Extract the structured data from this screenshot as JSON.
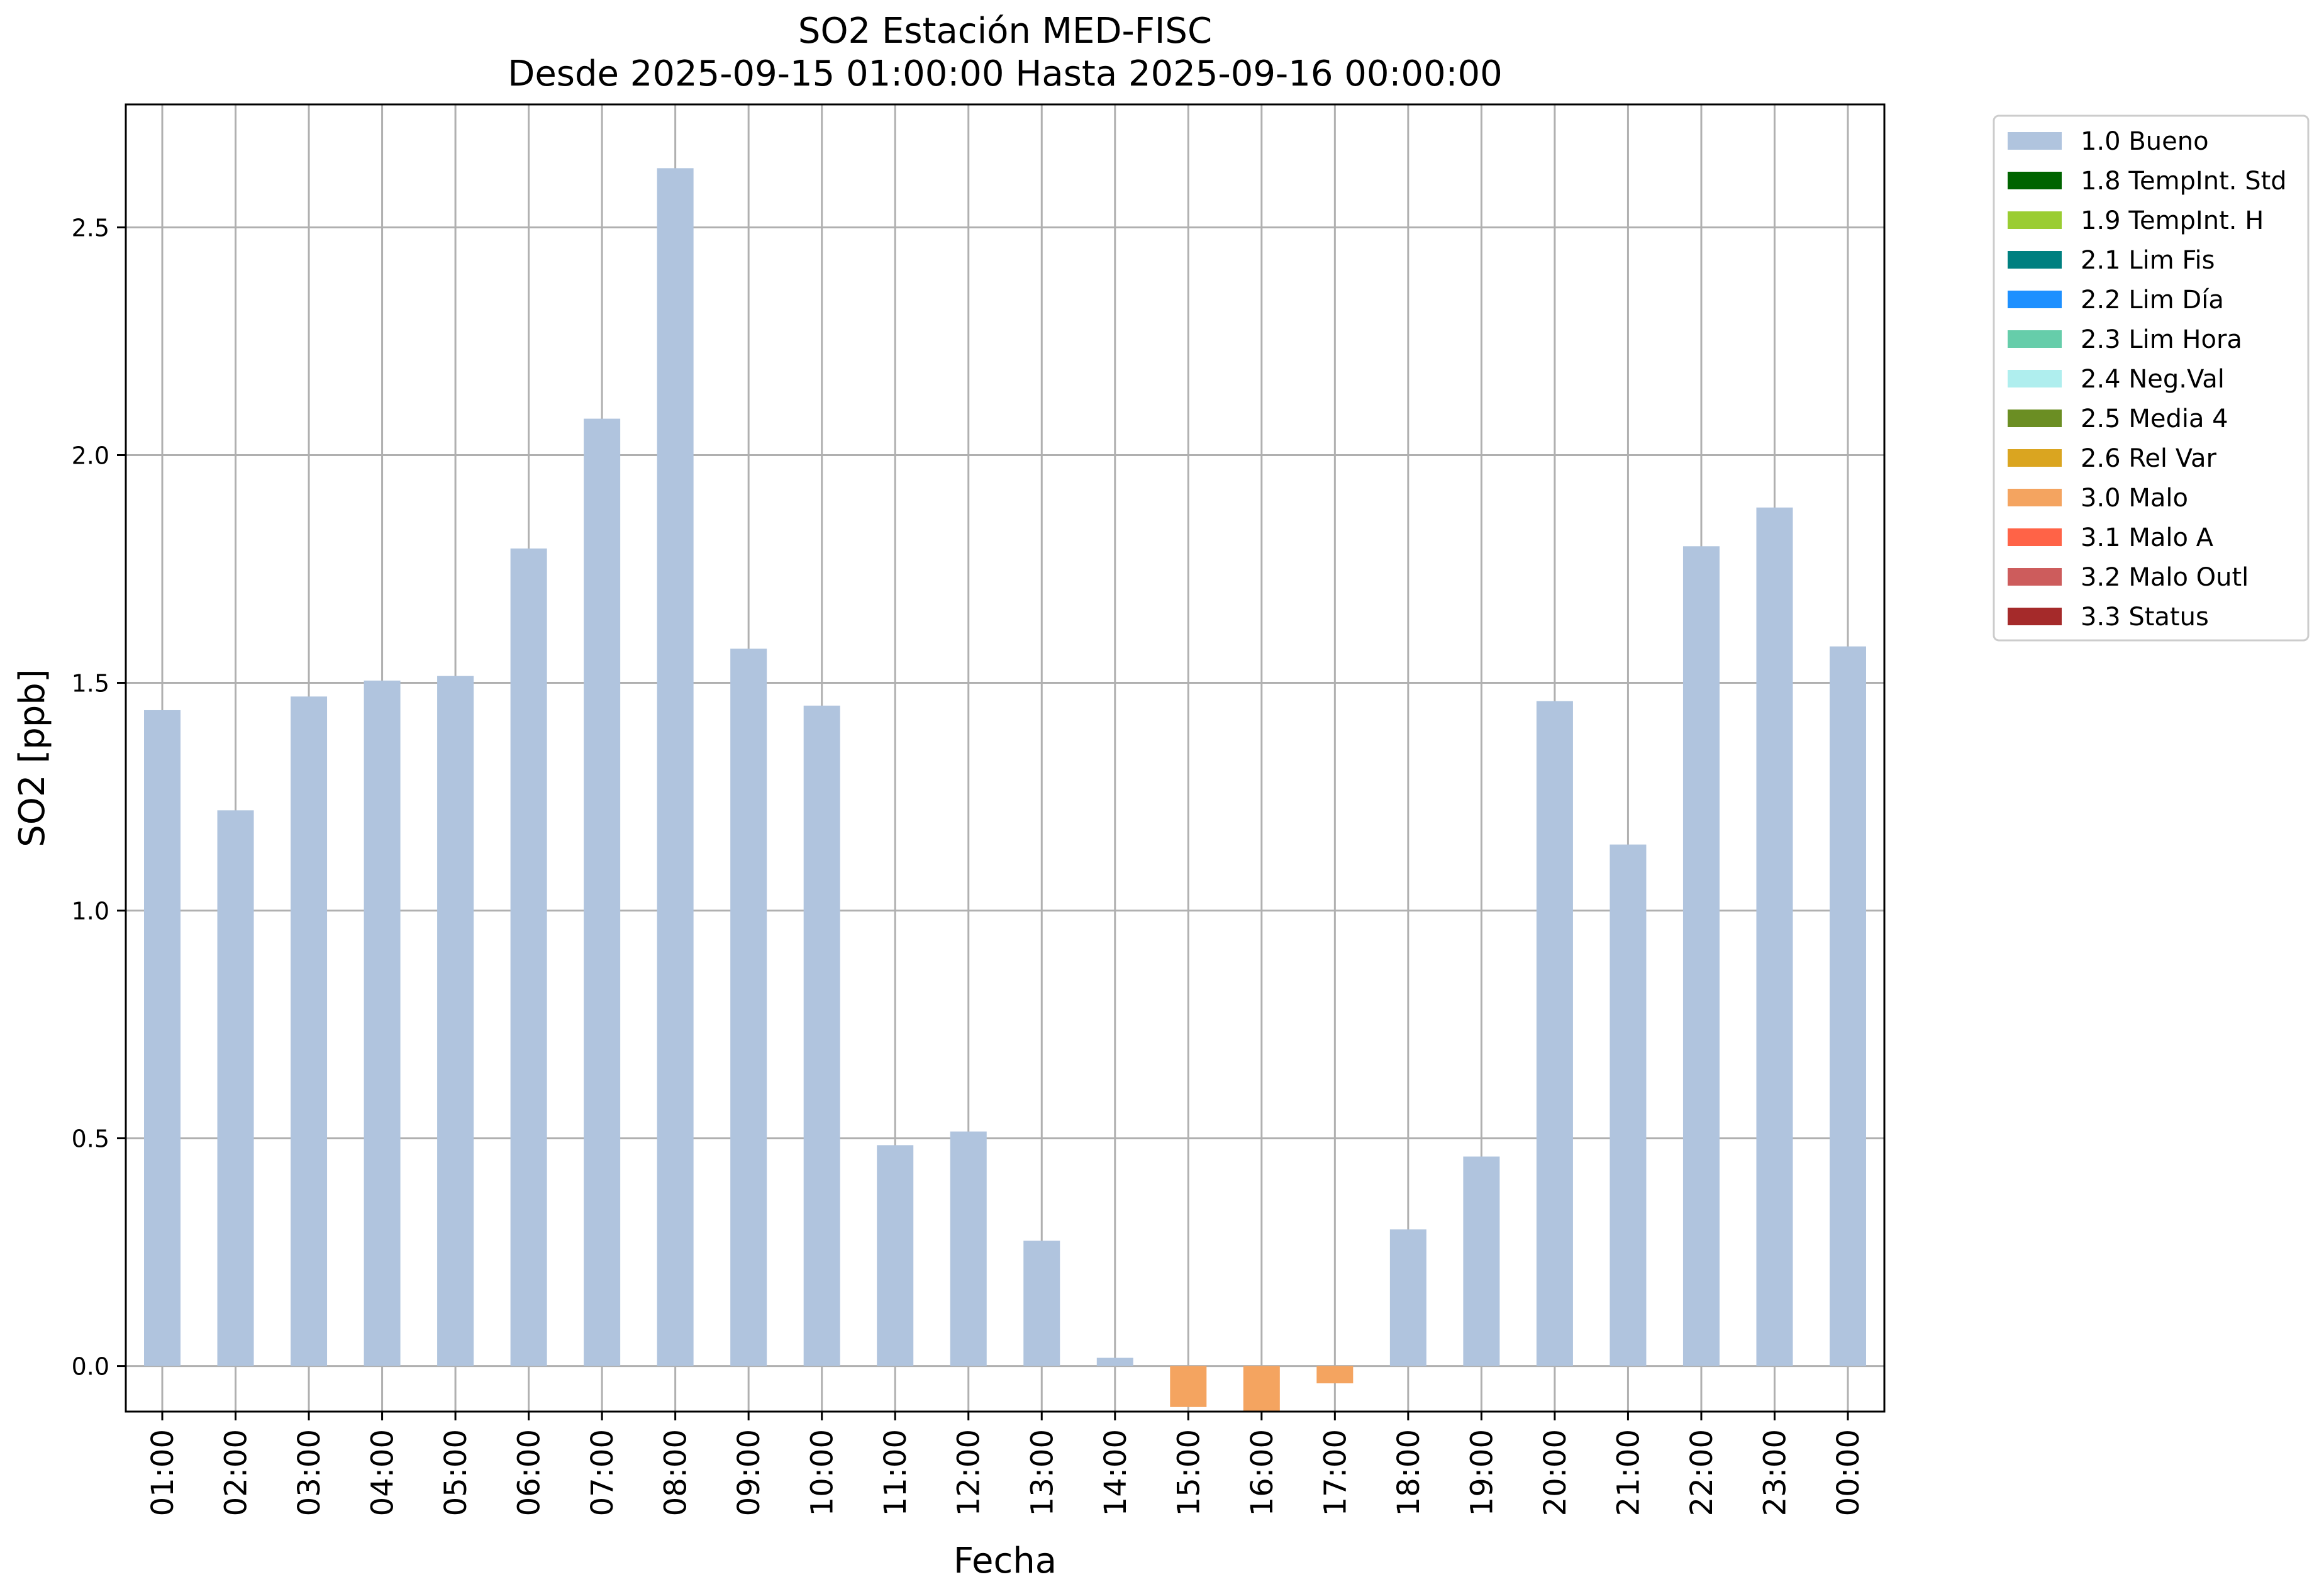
{
  "chart_data": {
    "type": "bar",
    "title": "SO2 Estación MED-FISC",
    "subtitle": "Desde 2025-09-15 01:00:00 Hasta 2025-09-16 00:00:00",
    "xlabel": "Fecha",
    "ylabel": "SO2 [ppb]",
    "ylim": [
      -0.1,
      2.77
    ],
    "yticks": [
      "0.0",
      "0.5",
      "1.0",
      "1.5",
      "2.0",
      "2.5"
    ],
    "grid": true,
    "legend_position": "outside-top-right",
    "categories": [
      "01:00",
      "02:00",
      "03:00",
      "04:00",
      "05:00",
      "06:00",
      "07:00",
      "08:00",
      "09:00",
      "10:00",
      "11:00",
      "12:00",
      "13:00",
      "14:00",
      "15:00",
      "16:00",
      "17:00",
      "18:00",
      "19:00",
      "20:00",
      "21:00",
      "22:00",
      "23:00",
      "00:00"
    ],
    "values": [
      1.44,
      1.22,
      1.47,
      1.505,
      1.515,
      1.795,
      2.08,
      2.63,
      1.575,
      1.45,
      0.485,
      0.515,
      0.275,
      0.018,
      -0.09,
      -0.11,
      -0.038,
      0.3,
      0.46,
      1.46,
      1.145,
      1.8,
      1.885,
      1.58
    ],
    "flags": [
      "1.0 Bueno",
      "1.0 Bueno",
      "1.0 Bueno",
      "1.0 Bueno",
      "1.0 Bueno",
      "1.0 Bueno",
      "1.0 Bueno",
      "1.0 Bueno",
      "1.0 Bueno",
      "1.0 Bueno",
      "1.0 Bueno",
      "1.0 Bueno",
      "1.0 Bueno",
      "1.0 Bueno",
      "3.0 Malo",
      "3.0 Malo",
      "3.0 Malo",
      "1.0 Bueno",
      "1.0 Bueno",
      "1.0 Bueno",
      "1.0 Bueno",
      "1.0 Bueno",
      "1.0 Bueno",
      "1.0 Bueno"
    ],
    "legend": [
      {
        "label": "1.0 Bueno",
        "color": "#b0c4de"
      },
      {
        "label": "1.8 TempInt. Std",
        "color": "#006400"
      },
      {
        "label": "1.9 TempInt. H",
        "color": "#9acd32"
      },
      {
        "label": "2.1 Lim Fis",
        "color": "#008080"
      },
      {
        "label": "2.2 Lim Día",
        "color": "#1e90ff"
      },
      {
        "label": "2.3 Lim Hora",
        "color": "#66cdaa"
      },
      {
        "label": "2.4 Neg.Val",
        "color": "#afeeee"
      },
      {
        "label": "2.5 Media 4",
        "color": "#6b8e23"
      },
      {
        "label": "2.6 Rel Var",
        "color": "#daa520"
      },
      {
        "label": "3.0 Malo",
        "color": "#f4a460"
      },
      {
        "label": "3.1 Malo A",
        "color": "#ff6347"
      },
      {
        "label": "3.2 Malo Outl",
        "color": "#cd5c5c"
      },
      {
        "label": "3.3 Status",
        "color": "#a52a2a"
      }
    ]
  }
}
